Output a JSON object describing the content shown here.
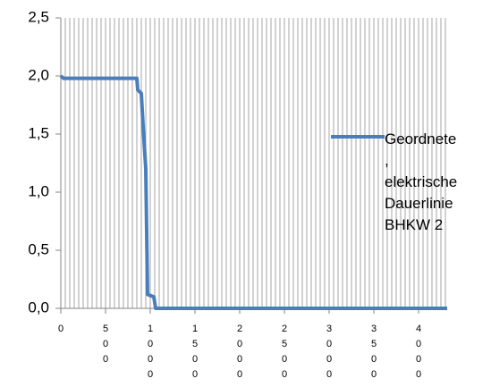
{
  "chart_data": {
    "type": "line",
    "x": [
      0,
      30,
      850,
      860,
      900,
      920,
      950,
      970,
      1000,
      1040,
      1060,
      4320
    ],
    "series": [
      {
        "name": "Geordnete\n,\nelektrische\nDauerlinie\nBHKW 2",
        "color": "#4a7ebb",
        "values": [
          2.0,
          1.98,
          1.98,
          1.88,
          1.85,
          1.57,
          1.2,
          0.12,
          0.11,
          0.1,
          0,
          0
        ]
      }
    ],
    "xlim": [
      0,
      4320
    ],
    "xticks": [
      0,
      500,
      1000,
      1500,
      2000,
      2500,
      3000,
      3500,
      4000
    ],
    "ylim": [
      0,
      2.5
    ],
    "yticks": [
      {
        "value": 0,
        "label": "0,0"
      },
      {
        "value": 0.5,
        "label": "0,5"
      },
      {
        "value": 1,
        "label": "1,0"
      },
      {
        "value": 1.5,
        "label": "1,5"
      },
      {
        "value": 2,
        "label": "2,0"
      },
      {
        "value": 2.5,
        "label": "2,5"
      }
    ],
    "legend": "right",
    "grid": true
  }
}
